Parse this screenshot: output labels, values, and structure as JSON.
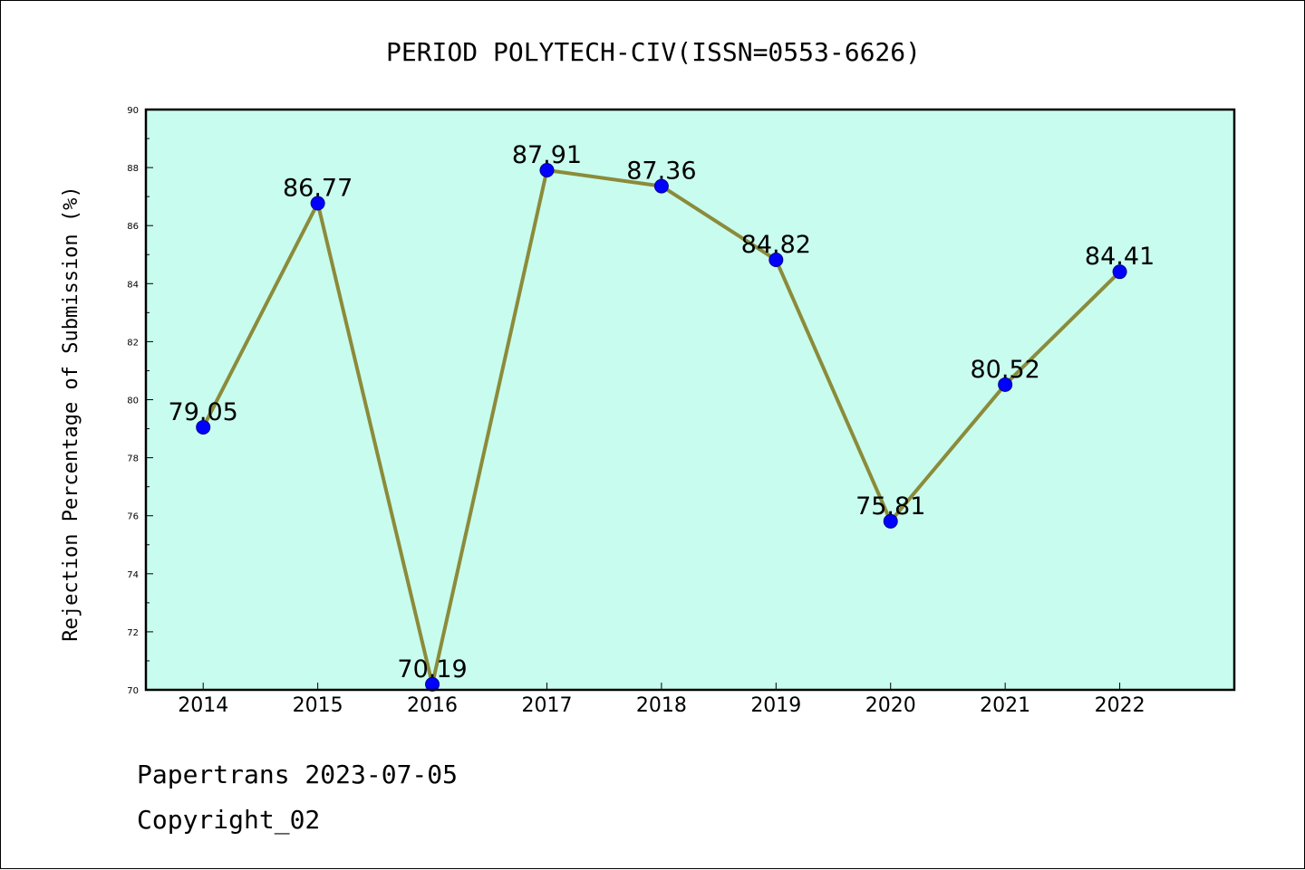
{
  "chart_data": {
    "type": "line",
    "title": "PERIOD POLYTECH-CIV(ISSN=0553-6626)",
    "ylabel": "Rejection Percentage of Submission (%)",
    "xlabel": "",
    "x": [
      "2014",
      "2015",
      "2016",
      "2017",
      "2018",
      "2019",
      "2020",
      "2021",
      "2022"
    ],
    "series": [
      {
        "values": [
          79.05,
          86.77,
          70.19,
          87.91,
          87.36,
          84.82,
          75.81,
          80.52,
          84.41
        ],
        "labels": [
          "79.05",
          "86.77",
          "70.19",
          "87.91",
          "87.36",
          "84.82",
          "75.81",
          "80.52",
          "84.41"
        ]
      }
    ],
    "ylim": [
      70,
      90
    ],
    "yticks": [
      "70",
      "72",
      "74",
      "76",
      "78",
      "80",
      "82",
      "84",
      "86",
      "88",
      "90"
    ],
    "grid": false,
    "colors": {
      "plot_background": "#c8fcee",
      "line": "#8b8b3a",
      "marker": "#0000ff"
    }
  },
  "footer": {
    "source": "Papertrans 2023-07-05",
    "copyright": "Copyright_02"
  }
}
